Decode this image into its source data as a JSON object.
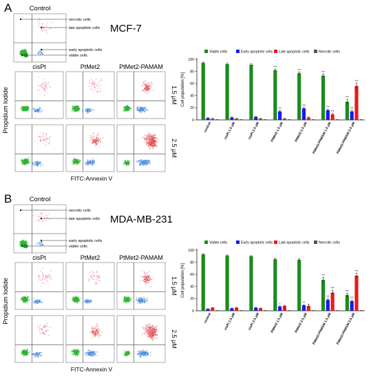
{
  "panels": [
    {
      "letter": "A",
      "cell_line": "MCF-7",
      "control_label": "Control",
      "quadrant_labels": {
        "necrotic": "necrotic cells",
        "late": "late apoptotic cells",
        "early": "early apoptotic cells",
        "viable": "viable cells"
      },
      "column_labels": [
        "cisPt",
        "PtMet2",
        "PtMet2-PAMAM"
      ],
      "row_labels": [
        "1.5 μM",
        "2.5 μM"
      ],
      "y_axis_label": "Propidium Iodide",
      "x_axis_label": "FITC-Annexin V",
      "chart_data": {
        "type": "bar",
        "ylabel": "Cell population [%]",
        "ylim": [
          0,
          100
        ],
        "yticks": [
          0,
          20,
          40,
          60,
          80,
          100
        ],
        "legend_position": "top",
        "categories": [
          "control",
          "cisPt 1.5 μM",
          "cisPt 2.5 μM",
          "PtMet2 1.5 μM",
          "PtMet2 2.5 μM",
          "PtMet2-PAMAM 1.5 μM",
          "PtMet2-PAMAM 2.5 μM"
        ],
        "series": [
          {
            "name": "Viable cells",
            "color": "#1e8a1e",
            "values": [
              94,
              92,
              91,
              82,
              77,
              73,
              30
            ],
            "errors": [
              1.5,
              1.5,
              1.5,
              2,
              2,
              2.5,
              4
            ],
            "sig": [
              "",
              "",
              "",
              "***",
              "***",
              "***",
              "***"
            ]
          },
          {
            "name": "Early apoptotic cells",
            "color": "#1a1aee",
            "values": [
              3,
              4,
              5,
              14,
              19,
              16,
              14
            ],
            "errors": [
              0.8,
              0.8,
              0.8,
              1.5,
              1.5,
              2,
              2
            ],
            "sig": [
              "",
              "",
              "",
              "***",
              "***",
              "***",
              "***"
            ]
          },
          {
            "name": "Late apoptotic cells",
            "color": "#e81c1c",
            "values": [
              2,
              2,
              2,
              2,
              4,
              9,
              56
            ],
            "errors": [
              0.5,
              0.5,
              0.5,
              0.5,
              0.8,
              2,
              5
            ],
            "sig": [
              "",
              "",
              "",
              "",
              "",
              "***",
              "***"
            ]
          },
          {
            "name": "Necrotic cells",
            "color": "#555555",
            "values": [
              0.5,
              0.5,
              0.5,
              0.5,
              0.5,
              0.5,
              0.5
            ],
            "errors": [
              0.2,
              0.2,
              0.2,
              0.2,
              0.2,
              0.2,
              0.2
            ],
            "sig": [
              "",
              "",
              "",
              "",
              "",
              "",
              ""
            ]
          }
        ]
      }
    },
    {
      "letter": "B",
      "cell_line": "MDA-MB-231",
      "control_label": "Control",
      "quadrant_labels": {
        "necrotic": "necrotic cells",
        "late": "late apoptotic cells",
        "early": "early apoptotic cells",
        "viable": "viable cells"
      },
      "column_labels": [
        "cisPt",
        "PtMet2",
        "PtMet2-PAMAM"
      ],
      "row_labels": [
        "1.5 μM",
        "2.5 μM"
      ],
      "y_axis_label": "Propidium Iodide",
      "x_axis_label": "FITC-Annexin V",
      "chart_data": {
        "type": "bar",
        "ylabel": "Cell population [%]",
        "ylim": [
          0,
          100
        ],
        "yticks": [
          0,
          20,
          40,
          60,
          80,
          100
        ],
        "legend_position": "top",
        "categories": [
          "control",
          "cisPt 1.5 μM",
          "cisPt 2.5 μM",
          "PtMet2 1.5 μM",
          "PtMet2 2.5 μM",
          "PtMet2-PAMAM 1.5 μM",
          "PtMet2-PAMAM 2.5 μM"
        ],
        "series": [
          {
            "name": "Viable cells",
            "color": "#1e8a1e",
            "values": [
              93,
              91,
              90,
              85,
              84,
              51,
              26
            ],
            "errors": [
              1,
              1,
              1,
              1.5,
              2,
              4,
              3
            ],
            "sig": [
              "",
              "",
              "",
              "",
              "",
              "***",
              "***"
            ]
          },
          {
            "name": "Early apoptotic cells",
            "color": "#1a1aee",
            "values": [
              3,
              4,
              5,
              7,
              9,
              18,
              16
            ],
            "errors": [
              0.5,
              0.5,
              0.5,
              1,
              1,
              2,
              2
            ],
            "sig": [
              "",
              "",
              "",
              "*",
              "**",
              "***",
              "***"
            ]
          },
          {
            "name": "Late apoptotic cells",
            "color": "#e81c1c",
            "values": [
              5,
              5,
              4,
              8,
              8,
              30,
              58
            ],
            "errors": [
              0.5,
              0.5,
              0.5,
              1,
              3,
              4,
              4
            ],
            "sig": [
              "",
              "",
              "",
              "",
              "",
              "***",
              "***"
            ]
          },
          {
            "name": "Necrotic cells",
            "color": "#555555",
            "values": [
              0.5,
              0.5,
              0.5,
              0.5,
              0.5,
              0.5,
              0.5
            ],
            "errors": [
              0.2,
              0.2,
              0.2,
              0.2,
              0.2,
              0.2,
              0.2
            ],
            "sig": [
              "",
              "",
              "",
              "",
              "",
              "",
              ""
            ]
          }
        ]
      }
    }
  ]
}
